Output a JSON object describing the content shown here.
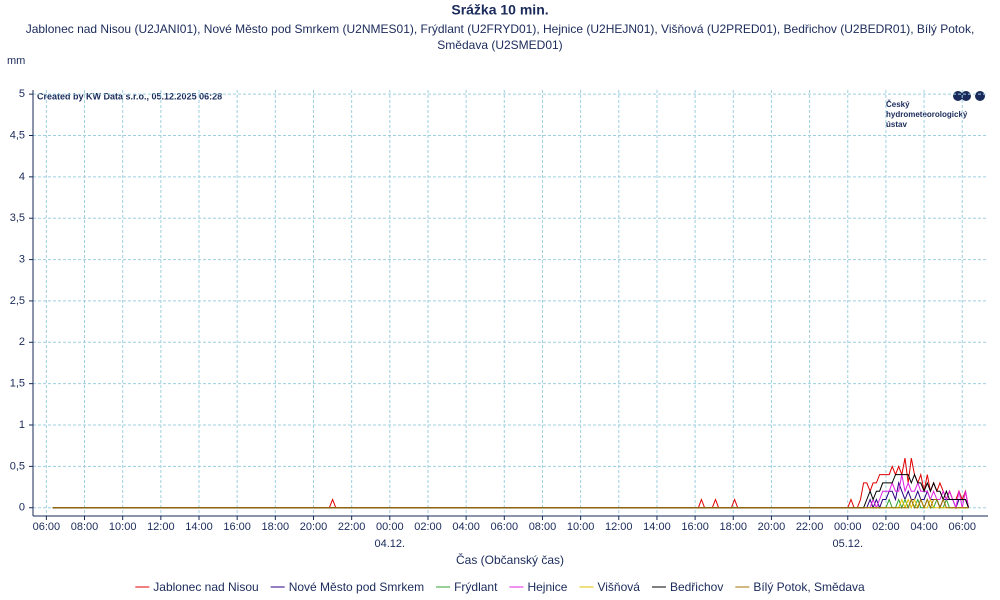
{
  "chart_data": {
    "type": "line",
    "title": "Srážka 10 min.",
    "subtitle": "Jablonec nad Nisou (U2JANI01), Nové Město pod Smrkem (U2NMES01), Frýdlant (U2FRYD01), Hejnice (U2HEJN01), Višňová (U2PRED01), Bedřichov (U2BEDR01), Bílý Potok, Smědava (U2SMED01)",
    "y_label": "mm",
    "x_label": "Čas (Občanský čas)",
    "annotation": "Created by KW Data s.r.o., 05.12.2025 06:28",
    "logo": [
      "Český",
      "hydrometeorologický",
      "ústav"
    ],
    "grid": true,
    "xlim": [
      -18.7,
      31.35
    ],
    "ylim": [
      -0.1,
      5.05
    ],
    "xticks": [
      {
        "value": -18,
        "label": "06:00"
      },
      {
        "value": -16,
        "label": "08:00"
      },
      {
        "value": -14,
        "label": "10:00"
      },
      {
        "value": -12,
        "label": "12:00"
      },
      {
        "value": -10,
        "label": "14:00"
      },
      {
        "value": -8,
        "label": "16:00"
      },
      {
        "value": -6,
        "label": "18:00"
      },
      {
        "value": -4,
        "label": "20:00"
      },
      {
        "value": -2,
        "label": "22:00"
      },
      {
        "value": 0,
        "label": "00:00"
      },
      {
        "value": 2,
        "label": "02:00"
      },
      {
        "value": 4,
        "label": "04:00"
      },
      {
        "value": 6,
        "label": "06:00"
      },
      {
        "value": 8,
        "label": "08:00"
      },
      {
        "value": 10,
        "label": "10:00"
      },
      {
        "value": 12,
        "label": "12:00"
      },
      {
        "value": 14,
        "label": "14:00"
      },
      {
        "value": 16,
        "label": "16:00"
      },
      {
        "value": 18,
        "label": "18:00"
      },
      {
        "value": 20,
        "label": "20:00"
      },
      {
        "value": 22,
        "label": "22:00"
      },
      {
        "value": 24,
        "label": "00:00"
      },
      {
        "value": 26,
        "label": "02:00"
      },
      {
        "value": 28,
        "label": "04:00"
      },
      {
        "value": 30,
        "label": "06:00"
      }
    ],
    "date_ticks": [
      {
        "value": 0,
        "label": "04.12."
      },
      {
        "value": 24,
        "label": "05.12."
      }
    ],
    "yticks": [
      0,
      {
        "value": 0.5,
        "label": "0,5"
      },
      1,
      {
        "value": 1.5,
        "label": "1,5"
      },
      2,
      {
        "value": 2.5,
        "label": "2,5"
      },
      3,
      {
        "value": 3.5,
        "label": "3,5"
      },
      4,
      {
        "value": 4.5,
        "label": "4,5"
      },
      5
    ],
    "x": [
      -17.67,
      -3.17,
      -3,
      -2.83,
      16.17,
      16.33,
      16.5,
      16.9,
      17.07,
      17.23,
      17.9,
      18.07,
      18.23,
      24,
      24.17,
      24.33,
      24.5,
      24.67,
      24.83,
      25,
      25.17,
      25.33,
      25.5,
      25.67,
      25.83,
      26,
      26.17,
      26.33,
      26.5,
      26.67,
      26.83,
      27,
      27.17,
      27.33,
      27.5,
      27.67,
      27.83,
      28,
      28.17,
      28.33,
      28.5,
      28.67,
      28.83,
      29,
      29.17,
      29.33,
      29.5,
      29.67,
      29.83,
      30,
      30.17,
      30.33
    ],
    "series": [
      {
        "name": "Jablonec nad Nisou",
        "color": "#e00000",
        "values": [
          0,
          0,
          0.1,
          0,
          0,
          0.1,
          0,
          0,
          0.1,
          0,
          0,
          0.1,
          0,
          0,
          0.1,
          0,
          0,
          0.1,
          0.3,
          0.3,
          0.2,
          0.3,
          0.3,
          0.4,
          0.4,
          0.4,
          0.4,
          0.5,
          0.4,
          0.5,
          0.4,
          0.6,
          0.3,
          0.6,
          0.4,
          0.3,
          0.4,
          0.2,
          0.4,
          0.2,
          0.3,
          0.2,
          0.3,
          0.2,
          0.1,
          0.2,
          0.1,
          0.1,
          0.2,
          0.1,
          0.2,
          0
        ]
      },
      {
        "name": "Nové Město pod Smrkem",
        "color": "#2a0080",
        "values": [
          0,
          0,
          0,
          0,
          0,
          0,
          0,
          0,
          0,
          0,
          0,
          0,
          0,
          0,
          0,
          0,
          0,
          0,
          0,
          0,
          0.1,
          0,
          0.1,
          0,
          0.1,
          0.1,
          0.2,
          0.2,
          0.1,
          0.3,
          0.2,
          0.1,
          0.2,
          0.1,
          0.1,
          0.2,
          0.1,
          0.1,
          0.2,
          0.1,
          0.1,
          0.1,
          0,
          0.1,
          0.1,
          0.1,
          0.1,
          0,
          0.1,
          0.1,
          0.1,
          0
        ]
      },
      {
        "name": "Frýdlant",
        "color": "#30a030",
        "values": [
          0,
          0,
          0,
          0,
          0,
          0,
          0,
          0,
          0,
          0,
          0,
          0,
          0,
          0,
          0,
          0,
          0,
          0,
          0,
          0,
          0,
          0,
          0,
          0,
          0,
          0,
          0.1,
          0,
          0,
          0.1,
          0,
          0.1,
          0,
          0.1,
          0,
          0.1,
          0,
          0,
          0.1,
          0,
          0,
          0.1,
          0,
          0,
          0.1,
          0,
          0,
          0,
          0,
          0,
          0,
          0
        ]
      },
      {
        "name": "Hejnice",
        "color": "#e020e0",
        "values": [
          0,
          0,
          0,
          0,
          0,
          0,
          0,
          0,
          0,
          0,
          0,
          0,
          0,
          0,
          0,
          0,
          0,
          0,
          0,
          0,
          0,
          0.1,
          0,
          0.1,
          0.2,
          0.2,
          0.2,
          0.3,
          0.2,
          0.2,
          0.4,
          0.2,
          0.3,
          0.2,
          0.2,
          0.3,
          0.2,
          0.2,
          0.2,
          0.1,
          0.2,
          0.1,
          0.1,
          0.2,
          0.1,
          0.2,
          0.1,
          0,
          0.2,
          0,
          0.2,
          0
        ]
      },
      {
        "name": "Višňová",
        "color": "#e0c000",
        "values": [
          0,
          0,
          0,
          0,
          0,
          0,
          0,
          0,
          0,
          0,
          0,
          0,
          0,
          0,
          0,
          0,
          0,
          0,
          0,
          0,
          0,
          0,
          0,
          0,
          0,
          0,
          0,
          0,
          0,
          0,
          0.1,
          0,
          0.1,
          0,
          0.1,
          0,
          0.1,
          0,
          0,
          0.1,
          0,
          0,
          0,
          0,
          0,
          0,
          0,
          0,
          0,
          0,
          0,
          0
        ]
      },
      {
        "name": "Bedřichov",
        "color": "#000000",
        "values": [
          0,
          0,
          0,
          0,
          0,
          0,
          0,
          0,
          0,
          0,
          0,
          0,
          0,
          0,
          0,
          0,
          0,
          0,
          0,
          0.1,
          0.2,
          0.1,
          0.2,
          0.2,
          0.3,
          0.3,
          0.3,
          0.3,
          0.4,
          0.4,
          0.4,
          0.4,
          0.4,
          0.3,
          0.4,
          0.3,
          0.3,
          0.2,
          0.3,
          0.2,
          0.3,
          0.2,
          0.2,
          0.1,
          0.2,
          0.1,
          0.1,
          0.1,
          0.1,
          0.1,
          0.1,
          0
        ]
      },
      {
        "name": "Bílý Potok, Smědava",
        "color": "#a07000",
        "values": [
          0,
          0,
          0,
          0,
          0,
          0,
          0,
          0,
          0,
          0,
          0,
          0,
          0,
          0,
          0,
          0,
          0,
          0,
          0,
          0,
          0,
          0,
          0,
          0,
          0,
          0,
          0,
          0,
          0,
          0,
          0,
          0,
          0,
          0.1,
          0,
          0,
          0.1,
          0,
          0.1,
          0,
          0.1,
          0.1,
          0,
          0.1,
          0,
          0,
          0,
          0,
          0,
          0,
          0,
          0
        ]
      }
    ]
  }
}
